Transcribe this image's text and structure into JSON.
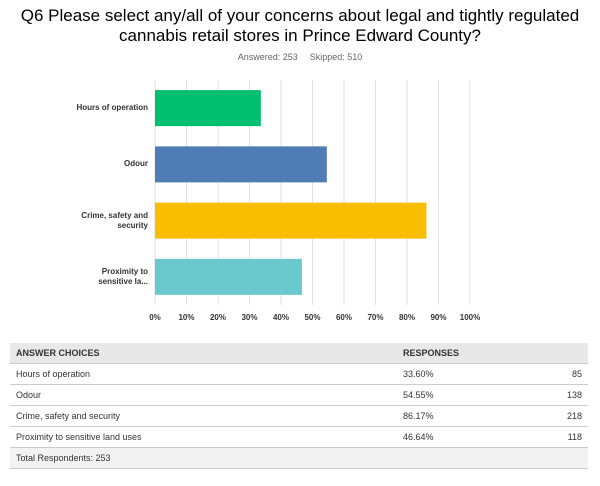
{
  "chart_data": {
    "type": "barh",
    "title": "Q6 Please select any/all of your concerns about legal and tightly regulated cannabis retail stores in Prince Edward County?",
    "answered": "Answered: 253",
    "skipped": "Skipped: 510",
    "categories": [
      "Hours of operation",
      "Odour",
      "Crime, safety and security",
      "Proximity to sensitive la..."
    ],
    "values": [
      33.6,
      54.55,
      86.17,
      46.64
    ],
    "colors": [
      "#00bf6f",
      "#507cb6",
      "#f9be00",
      "#6bc8cd"
    ],
    "xlim": [
      0,
      100
    ],
    "xticks": [
      {
        "value": 0,
        "label": "0%"
      },
      {
        "value": 10,
        "label": "10%"
      },
      {
        "value": 20,
        "label": "20%"
      },
      {
        "value": 30,
        "label": "30%"
      },
      {
        "value": 40,
        "label": "40%"
      },
      {
        "value": 50,
        "label": "50%"
      },
      {
        "value": 60,
        "label": "60%"
      },
      {
        "value": 70,
        "label": "70%"
      },
      {
        "value": 80,
        "label": "80%"
      },
      {
        "value": 90,
        "label": "90%"
      },
      {
        "value": 100,
        "label": "100%"
      }
    ],
    "grid": true
  },
  "table": {
    "header": [
      "ANSWER CHOICES",
      "RESPONSES"
    ],
    "rows": [
      [
        "Hours of operation",
        "33.60%",
        "85"
      ],
      [
        "Odour",
        "54.55%",
        "138"
      ],
      [
        "Crime, safety and security",
        "86.17%",
        "218"
      ],
      [
        "Proximity to sensitive land uses",
        "46.64%",
        "118"
      ]
    ],
    "total": "Total Respondents: 253"
  }
}
